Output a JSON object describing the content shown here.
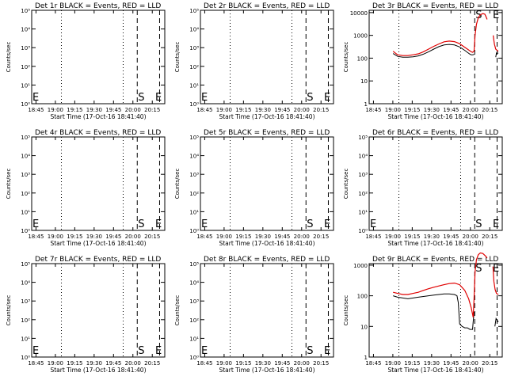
{
  "chart_data": [
    {
      "type": "line",
      "title": "Det 1r BLACK = Events, RED = LLD",
      "xlabel": "Start Time (17-Oct-16 18:41:40)",
      "ylabel": "Counts/sec",
      "yscale": "log",
      "ytick_labels": [
        "10⁰",
        "10¹",
        "10²",
        "10³",
        "10⁴",
        "10⁵"
      ],
      "xtick_labels": [
        "18:45",
        "19:00",
        "19:15",
        "19:30",
        "19:45",
        "20:00",
        "20:15"
      ],
      "xlim_minutes": [
        18.0,
        100.0
      ],
      "markers": {
        "S": 81.7,
        "E": 95.0
      },
      "series": []
    },
    {
      "type": "line",
      "title": "Det 2r BLACK = Events, RED = LLD",
      "xlabel": "Start Time (17-Oct-16 18:41:40)",
      "ylabel": "Counts/sec",
      "yscale": "log",
      "ytick_labels": [
        "10⁰",
        "10¹",
        "10²",
        "10³",
        "10⁴",
        "10⁵"
      ],
      "xtick_labels": [
        "18:45",
        "19:00",
        "19:15",
        "19:30",
        "19:45",
        "20:00",
        "20:15"
      ],
      "xlim_minutes": [
        18.0,
        100.0
      ],
      "markers": {
        "S": 81.7,
        "E": 95.0
      },
      "series": []
    },
    {
      "type": "line",
      "title": "Det 3r BLACK = Events, RED = LLD",
      "xlabel": "Start Time (17-Oct-16 18:41:40)",
      "ylabel": "Counts/sec",
      "yscale": "log",
      "ytick_labels": [
        "1",
        "10",
        "100",
        "1000",
        "10000"
      ],
      "xtick_labels": [
        "18:45",
        "19:00",
        "19:15",
        "19:30",
        "19:45",
        "20:00",
        "20:15"
      ],
      "xlim_minutes": [
        18.0,
        100.0
      ],
      "markers": {
        "S": 81.7,
        "E": 95.0
      },
      "series": [
        {
          "color": "#000000",
          "x": [
            18.5,
            22,
            26,
            30,
            34,
            38,
            42,
            46,
            50,
            54,
            58,
            62,
            66,
            70,
            74,
            76,
            78,
            79,
            80,
            81.3
          ],
          "y": [
            160,
            120,
            110,
            110,
            115,
            125,
            150,
            190,
            250,
            320,
            380,
            400,
            380,
            310,
            220,
            180,
            150,
            140,
            140,
            145
          ]
        },
        {
          "color": "#000000",
          "x": [
            98.0,
            98.5,
            100.0
          ],
          "y": [
            110,
            170,
            165
          ]
        },
        {
          "color": "#e00000",
          "x": [
            18.5,
            22,
            26,
            30,
            34,
            38,
            42,
            46,
            50,
            54,
            58,
            62,
            66,
            70,
            74,
            76,
            78,
            79,
            80,
            81.2,
            82,
            83,
            84.5,
            86,
            88,
            89.5,
            90.5,
            91.3
          ],
          "y": [
            200,
            140,
            130,
            130,
            140,
            155,
            190,
            250,
            330,
            420,
            520,
            560,
            530,
            430,
            300,
            250,
            210,
            190,
            180,
            200,
            1000,
            3000,
            6000,
            8000,
            9000,
            8500,
            6500,
            5000
          ]
        },
        {
          "color": "#e00000",
          "x": [
            96.0,
            96.5,
            97,
            98,
            99,
            100
          ],
          "y": [
            1000,
            600,
            400,
            250,
            220,
            200
          ]
        }
      ]
    },
    {
      "type": "line",
      "title": "Det 4r BLACK = Events, RED = LLD",
      "xlabel": "Start Time (17-Oct-16 18:41:40)",
      "ylabel": "Counts/sec",
      "yscale": "log",
      "ytick_labels": [
        "10⁰",
        "10¹",
        "10²",
        "10³",
        "10⁴",
        "10⁵"
      ],
      "xtick_labels": [
        "18:45",
        "19:00",
        "19:15",
        "19:30",
        "19:45",
        "20:00",
        "20:15"
      ],
      "xlim_minutes": [
        18.0,
        100.0
      ],
      "markers": {
        "S": 81.7,
        "E": 95.0
      },
      "series": []
    },
    {
      "type": "line",
      "title": "Det 5r BLACK = Events, RED = LLD",
      "xlabel": "Start Time (17-Oct-16 18:41:40)",
      "ylabel": "Counts/sec",
      "yscale": "log",
      "ytick_labels": [
        "10⁰",
        "10¹",
        "10²",
        "10³",
        "10⁴",
        "10⁵"
      ],
      "xtick_labels": [
        "18:45",
        "19:00",
        "19:15",
        "19:30",
        "19:45",
        "20:00",
        "20:15"
      ],
      "xlim_minutes": [
        18.0,
        100.0
      ],
      "markers": {
        "S": 81.7,
        "E": 95.0
      },
      "series": []
    },
    {
      "type": "line",
      "title": "Det 6r BLACK = Events, RED = LLD",
      "xlabel": "Start Time (17-Oct-16 18:41:40)",
      "ylabel": "Counts/sec",
      "yscale": "log",
      "ytick_labels": [
        "10⁰",
        "10¹",
        "10²",
        "10³",
        "10⁴",
        "10⁵"
      ],
      "xtick_labels": [
        "18:45",
        "19:00",
        "19:15",
        "19:30",
        "19:45",
        "20:00",
        "20:15"
      ],
      "xlim_minutes": [
        18.0,
        100.0
      ],
      "markers": {
        "S": 81.7,
        "E": 95.0
      },
      "series": []
    },
    {
      "type": "line",
      "title": "Det 7r BLACK = Events, RED = LLD",
      "xlabel": "Start Time (17-Oct-16 18:41:40)",
      "ylabel": "Counts/sec",
      "yscale": "log",
      "ytick_labels": [
        "10⁰",
        "10¹",
        "10²",
        "10³",
        "10⁴",
        "10⁵"
      ],
      "xtick_labels": [
        "18:45",
        "19:00",
        "19:15",
        "19:30",
        "19:45",
        "20:00",
        "20:15"
      ],
      "xlim_minutes": [
        18.0,
        100.0
      ],
      "markers": {
        "S": 81.7,
        "E": 95.0
      },
      "series": []
    },
    {
      "type": "line",
      "title": "Det 8r BLACK = Events, RED = LLD",
      "xlabel": "Start Time (17-Oct-16 18:41:40)",
      "ylabel": "Counts/sec",
      "yscale": "log",
      "ytick_labels": [
        "10⁰",
        "10¹",
        "10²",
        "10³",
        "10⁴",
        "10⁵"
      ],
      "xtick_labels": [
        "18:45",
        "19:00",
        "19:15",
        "19:30",
        "19:45",
        "20:00",
        "20:15"
      ],
      "xlim_minutes": [
        18.0,
        100.0
      ],
      "markers": {
        "S": 81.7,
        "E": 95.0
      },
      "series": []
    },
    {
      "type": "line",
      "title": "Det 9r BLACK = Events, RED = LLD",
      "xlabel": "Start Time (17-Oct-16 18:41:40)",
      "ylabel": "Counts/sec",
      "yscale": "log",
      "ytick_labels": [
        "1",
        "10",
        "100",
        "1000"
      ],
      "xtick_labels": [
        "18:45",
        "19:00",
        "19:15",
        "19:30",
        "19:45",
        "20:00",
        "20:15"
      ],
      "xlim_minutes": [
        18.0,
        100.0
      ],
      "markers": {
        "S": 81.7,
        "E": 95.0
      },
      "series": [
        {
          "color": "#000000",
          "x": [
            18.5,
            22,
            26,
            30,
            34,
            38,
            42,
            46,
            50,
            54,
            58,
            62,
            66,
            68,
            69,
            70,
            72,
            74,
            76,
            78,
            80,
            81.2
          ],
          "y": [
            100,
            90,
            85,
            80,
            85,
            90,
            95,
            100,
            105,
            110,
            115,
            115,
            110,
            100,
            60,
            12,
            10,
            9,
            9,
            8,
            8,
            30
          ]
        },
        {
          "color": "#000000",
          "x": [
            97.3,
            98.2,
            99,
            100
          ],
          "y": [
            10,
            18,
            16,
            14
          ]
        },
        {
          "color": "#e00000",
          "x": [
            18.5,
            22,
            26,
            30,
            34,
            38,
            42,
            46,
            50,
            54,
            58,
            62,
            66,
            70,
            74,
            77,
            79,
            80.5,
            81.2,
            82,
            83,
            84.5,
            86,
            88,
            90,
            91.3
          ],
          "y": [
            130,
            120,
            110,
            110,
            120,
            130,
            150,
            170,
            190,
            210,
            230,
            250,
            260,
            230,
            150,
            80,
            40,
            20,
            80,
            600,
            1500,
            2200,
            2500,
            2400,
            2000,
            1700
          ]
        },
        {
          "color": "#e00000",
          "x": [
            95.8,
            96.5,
            97.5,
            98.5,
            100
          ],
          "y": [
            900,
            300,
            160,
            120,
            110
          ]
        }
      ]
    }
  ]
}
